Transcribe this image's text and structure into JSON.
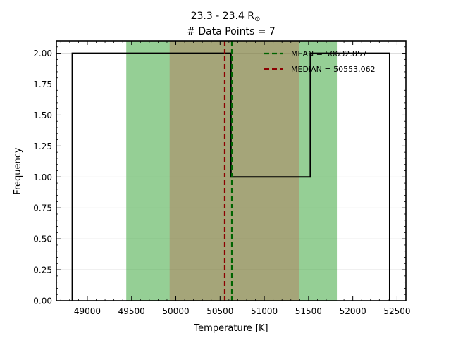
{
  "chart_data": {
    "type": "histogram",
    "title": "23.3 - 23.4 R",
    "title_symbol": "⊙",
    "subtitle": "# Data Points = 7",
    "xlabel": "Temperature [K]",
    "ylabel": "Frequency",
    "xlim": [
      48650,
      52600
    ],
    "ylim": [
      0,
      2.1
    ],
    "xticks": [
      49000,
      49500,
      50000,
      50500,
      51000,
      51500,
      52000,
      52500
    ],
    "yticks": [
      0.0,
      0.25,
      0.5,
      0.75,
      1.0,
      1.25,
      1.5,
      1.75,
      2.0
    ],
    "ytick_labels": [
      "0.00",
      "0.25",
      "0.50",
      "0.75",
      "1.00",
      "1.25",
      "1.50",
      "1.75",
      "2.00"
    ],
    "grid": "horizontal",
    "histogram": {
      "bin_edges": [
        48830,
        49726.7,
        50623.3,
        51520,
        52416.7
      ],
      "counts": [
        2,
        2,
        1,
        2
      ],
      "color": "#000000"
    },
    "bands": [
      {
        "name": "std-mean",
        "range": [
          49440,
          51820
        ],
        "color": "#2ca02c",
        "alpha": 0.5
      },
      {
        "name": "std-median",
        "range": [
          49930,
          51390
        ],
        "color": "#d62728",
        "alpha": 0.25
      }
    ],
    "lines": [
      {
        "name": "mean",
        "label": "MEAN = 50632.857",
        "x": 50632.857,
        "color": "#006400"
      },
      {
        "name": "median",
        "label": "MEDIAN = 50553.062",
        "x": 50553.062,
        "color": "#8b0000"
      }
    ],
    "legend_placement": "top-right"
  }
}
